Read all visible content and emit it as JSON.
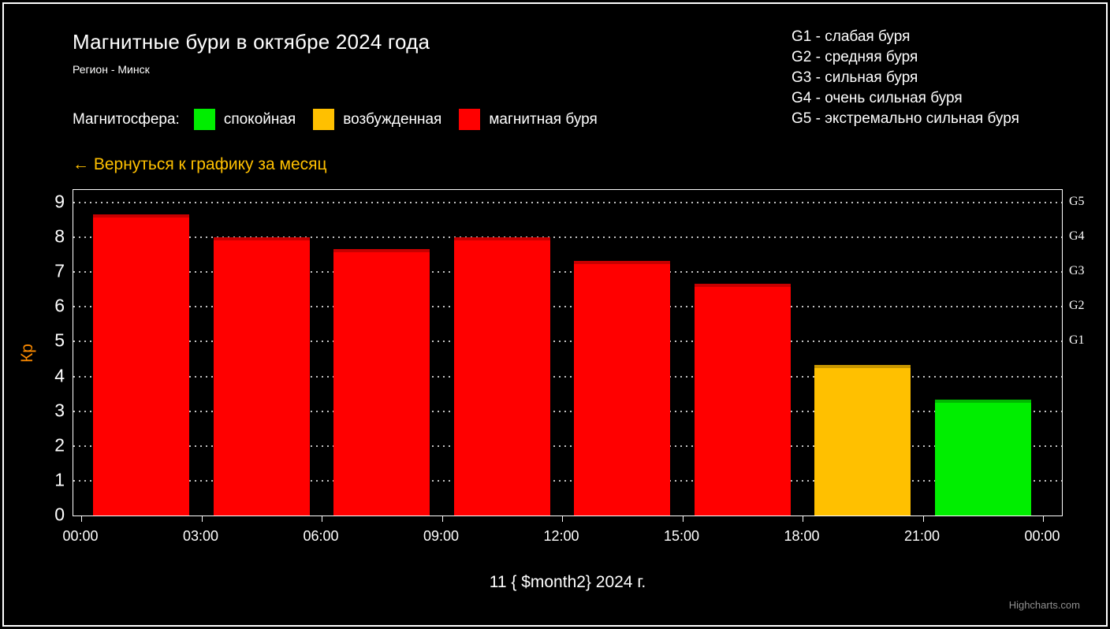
{
  "header": {
    "title": "Магнитные бури в октябре 2024 года",
    "subtitle": "Регион - Минск"
  },
  "storm_scale": {
    "items": [
      "G1 - слабая буря",
      "G2 - средняя буря",
      "G3 - сильная буря",
      "G4 - очень сильная буря",
      "G5 - экстремально сильная буря"
    ]
  },
  "legend": {
    "label": "Магнитосфера:",
    "items": [
      {
        "label": "спокойная",
        "color": "#00EE00"
      },
      {
        "label": "возбужденная",
        "color": "#FFC000"
      },
      {
        "label": "магнитная буря",
        "color": "#FF0000"
      }
    ]
  },
  "back_link": {
    "label": "← Вернуться к графику за месяц",
    "color": "#FFC000"
  },
  "chart_data": {
    "type": "bar",
    "title": "Магнитные бури в октябре 2024 года",
    "xlabel": "11 { $month2} 2024 г.",
    "ylabel": "Кр",
    "ylabel_color": "#FF8C00",
    "ylim": [
      0,
      9.35
    ],
    "yticks": [
      0,
      1,
      2,
      3,
      4,
      5,
      6,
      7,
      8,
      9
    ],
    "xticks": [
      "00:00",
      "03:00",
      "06:00",
      "09:00",
      "12:00",
      "15:00",
      "18:00",
      "21:00",
      "00:00"
    ],
    "grid": "dotted horizontal",
    "legend_position": "top-left",
    "right_axis_labels": [
      {
        "text": "G1",
        "kp": 5
      },
      {
        "text": "G2",
        "kp": 6
      },
      {
        "text": "G3",
        "kp": 7
      },
      {
        "text": "G4",
        "kp": 8
      },
      {
        "text": "G5",
        "kp": 9
      }
    ],
    "series": [
      {
        "name": "Kp",
        "points": [
          {
            "time": "00:00",
            "value": 8.67,
            "status": "магнитная буря",
            "color": "#FF0000"
          },
          {
            "time": "03:00",
            "value": 8.0,
            "status": "магнитная буря",
            "color": "#FF0000"
          },
          {
            "time": "06:00",
            "value": 7.67,
            "status": "магнитная буря",
            "color": "#FF0000"
          },
          {
            "time": "09:00",
            "value": 8.0,
            "status": "магнитная буря",
            "color": "#FF0000"
          },
          {
            "time": "12:00",
            "value": 7.33,
            "status": "магнитная буря",
            "color": "#FF0000"
          },
          {
            "time": "15:00",
            "value": 6.67,
            "status": "магнитная буря",
            "color": "#FF0000"
          },
          {
            "time": "18:00",
            "value": 4.33,
            "status": "возбужденная",
            "color": "#FFC000"
          },
          {
            "time": "21:00",
            "value": 3.33,
            "status": "спокойная",
            "color": "#00EE00"
          }
        ]
      }
    ]
  },
  "credits": {
    "label": "Highcharts.com"
  }
}
